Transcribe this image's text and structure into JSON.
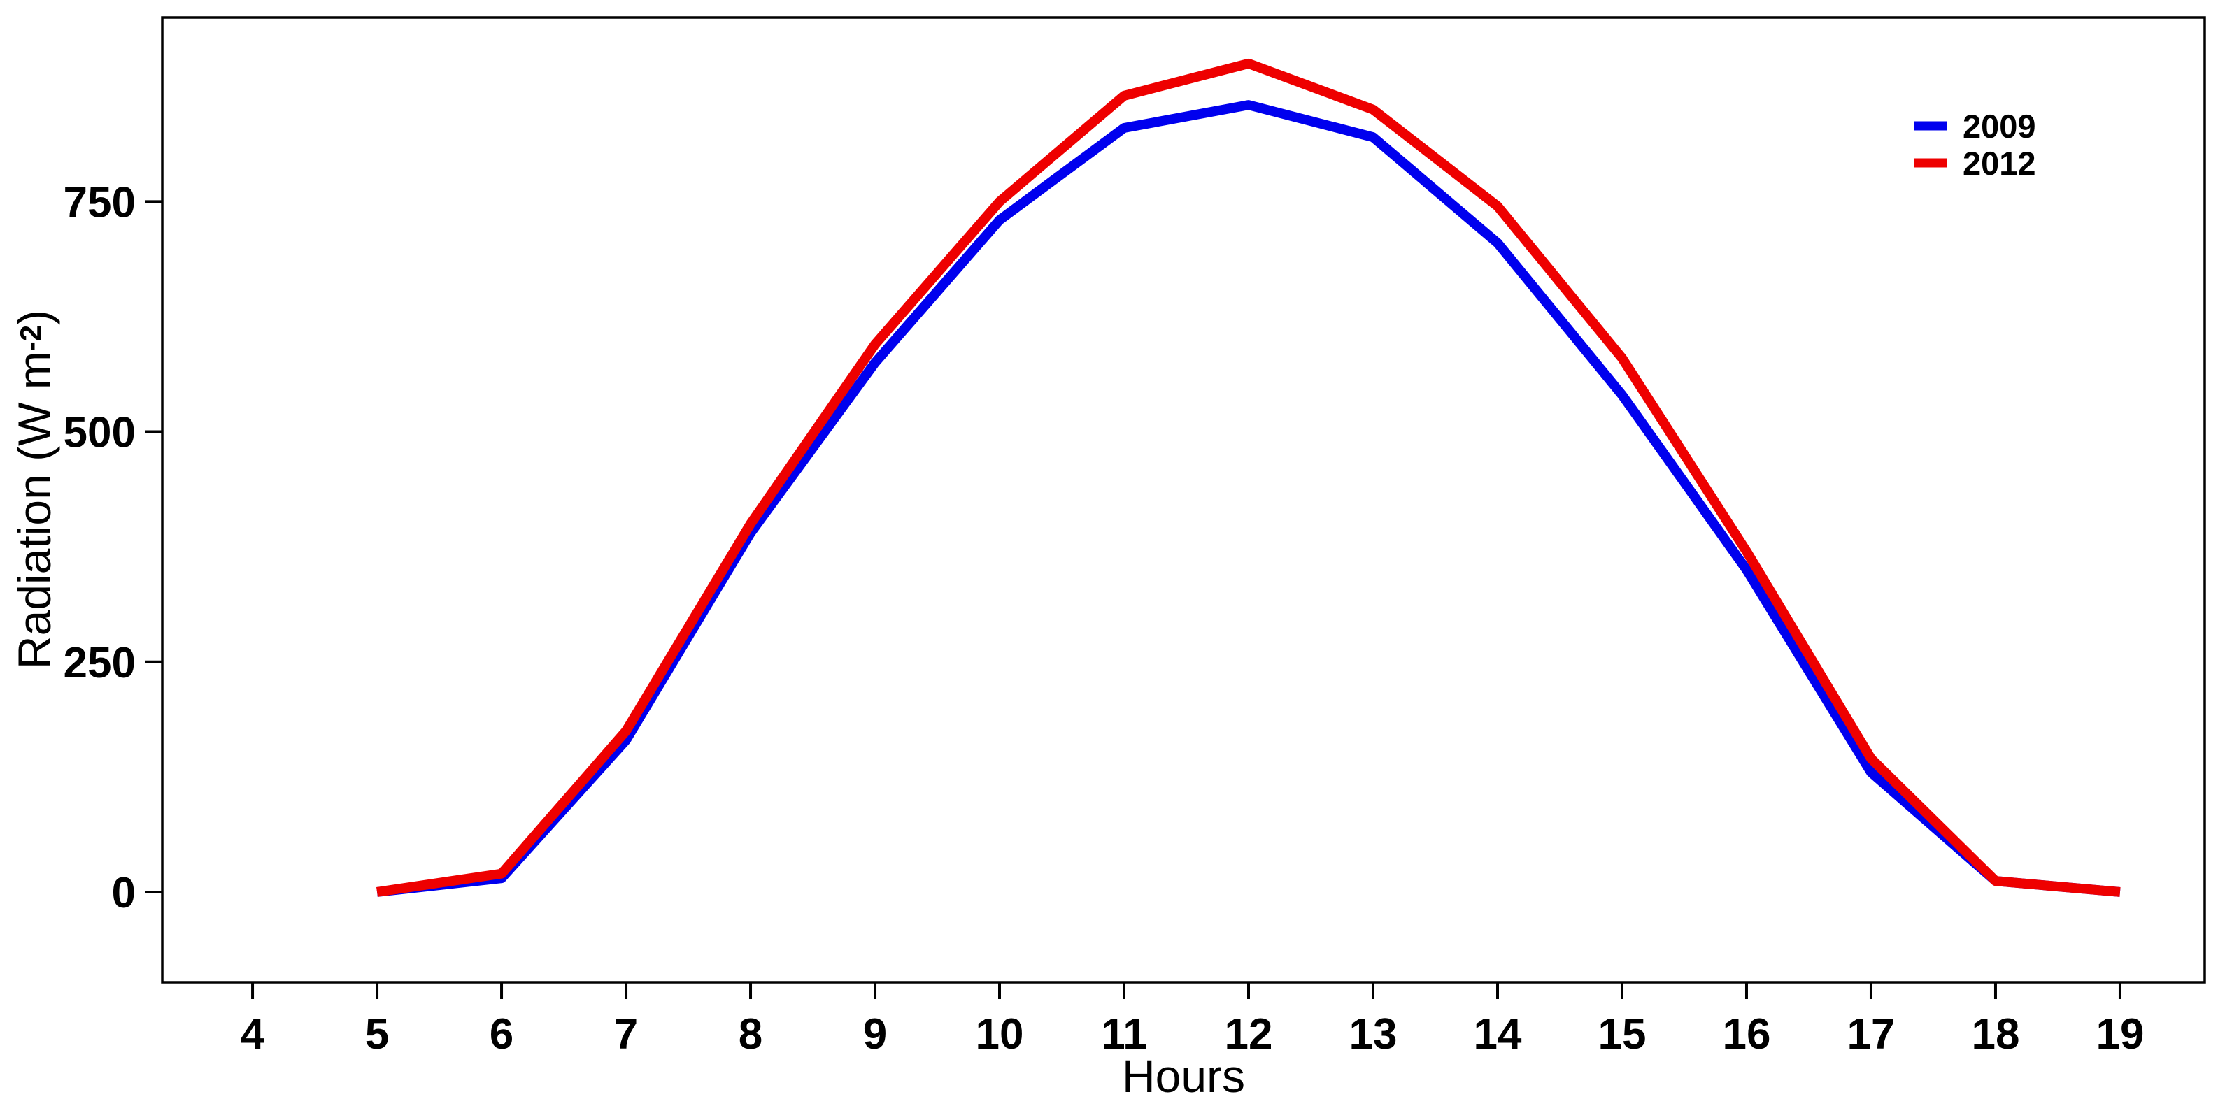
{
  "chart_data": {
    "type": "line",
    "title": "",
    "xlabel": "Hours",
    "ylabel": "Radiation (W m-2)",
    "ylabel_parts": {
      "prefix": "Radiation (W m",
      "sup": "-2",
      "suffix": ")"
    },
    "x": [
      5,
      6,
      7,
      8,
      9,
      10,
      11,
      12,
      13,
      14,
      15,
      16,
      17,
      18,
      19
    ],
    "series": [
      {
        "name": "2009",
        "color": "#0000EE",
        "values": [
          0,
          15,
          165,
          390,
          575,
          730,
          830,
          855,
          820,
          705,
          540,
          350,
          130,
          12,
          0
        ]
      },
      {
        "name": "2012",
        "color": "#EE0000",
        "values": [
          0,
          20,
          175,
          400,
          595,
          750,
          865,
          900,
          850,
          745,
          580,
          370,
          145,
          12,
          0
        ]
      }
    ],
    "x_ticks": [
      4,
      5,
      6,
      7,
      8,
      9,
      10,
      11,
      12,
      13,
      14,
      15,
      16,
      17,
      18,
      19
    ],
    "y_ticks": [
      0,
      250,
      500,
      750
    ],
    "xlim": [
      3.275,
      19.68
    ],
    "ylim": [
      -98,
      950
    ],
    "grid": false,
    "legend_position": "top-right",
    "legend": [
      "2009",
      "2012"
    ],
    "axis_color": "#000000",
    "background": "#FFFFFF"
  }
}
